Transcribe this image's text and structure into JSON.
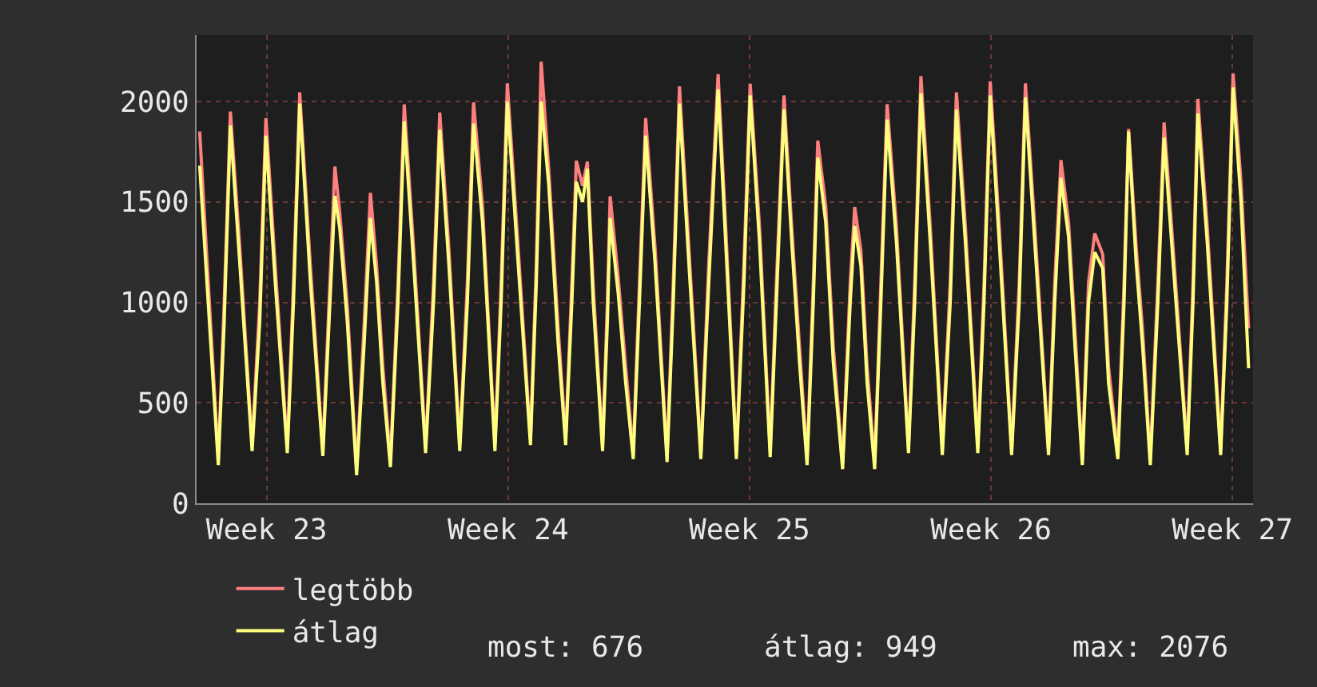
{
  "chart_data": {
    "type": "line",
    "x": [
      "--06-04T13:26",
      "--06-05T02:24",
      "--06-05T06:29",
      "--06-05T10:48",
      "--06-05T17:17",
      "--06-06T01:55",
      "--06-06T07:12",
      "--06-06T11:31",
      "--06-06T18:00",
      "--06-07T02:24",
      "--06-07T06:43",
      "--06-07T11:02",
      "--06-07T18:29",
      "--06-08T03:07",
      "--06-08T07:26",
      "--06-08T11:31",
      "--06-08T14:53",
      "--06-08T20:10",
      "--06-09T02:38",
      "--06-09T07:55",
      "--06-09T12:14",
      "--06-09T16:34",
      "--06-09T20:53",
      "--06-10T02:10",
      "--06-10T07:26",
      "--06-10T11:46",
      "--06-10T18:14",
      "--06-11T02:38",
      "--06-11T08:10",
      "--06-11T12:29",
      "--06-11T18:43",
      "--06-12T02:24",
      "--06-12T07:41",
      "--06-12T12:00",
      "--06-12T18:14",
      "--06-13T02:53",
      "--06-13T07:12",
      "--06-13T11:31",
      "--06-13T18:58",
      "--06-14T03:36",
      "--06-14T07:41",
      "--06-14T11:02",
      "--06-14T16:19",
      "--06-14T22:48",
      "--06-15T04:05",
      "--06-15T08:24",
      "--06-15T11:31",
      "--06-15T15:50",
      "--06-15T19:12",
      "--06-15T23:17",
      "--06-16T05:46",
      "--06-16T09:07",
      "--06-16T11:02",
      "--06-16T16:34",
      "--06-16T21:50",
      "--06-17T03:07",
      "--06-17T07:26",
      "--06-17T11:46",
      "--06-17T18:14",
      "--06-18T02:38",
      "--06-18T06:58",
      "--06-18T11:17",
      "--06-18T17:46",
      "--06-19T02:10",
      "--06-19T07:41",
      "--06-19T14:10",
      "--06-19T19:26",
      "--06-20T02:53",
      "--06-20T08:10",
      "--06-20T12:29",
      "--06-20T18:58",
      "--06-21T02:24",
      "--06-21T06:43",
      "--06-21T12:00",
      "--06-21T17:31",
      "--06-21T22:48",
      "--06-22T04:05",
      "--06-22T08:24",
      "--06-22T11:31",
      "--06-22T17:02",
      "--06-22T22:19",
      "--06-23T04:48",
      "--06-23T10:05",
      "--06-23T13:12",
      "--06-23T17:31",
      "--06-23T21:50",
      "--06-24T03:07",
      "--06-24T07:26",
      "--06-24T11:46",
      "--06-24T18:14",
      "--06-25T02:38",
      "--06-25T06:58",
      "--06-25T11:17",
      "--06-25T17:46",
      "--06-26T02:10",
      "--06-26T07:41",
      "--06-26T12:00",
      "--06-26T18:14",
      "--06-27T02:53",
      "--06-27T07:12",
      "--06-27T11:31",
      "--06-27T17:46",
      "--06-28T02:24",
      "--06-28T07:41",
      "--06-28T12:00",
      "--06-28T18:29",
      "--06-29T04:05",
      "--06-29T08:24",
      "--06-29T12:43",
      "--06-29T18:00",
      "--06-29T22:19",
      "--06-30T03:36",
      "--06-30T07:55",
      "--06-30T12:14",
      "--06-30T17:46",
      "--06-30T21:50",
      "--07-01T04:19",
      "--07-01T08:38",
      "--07-01T11:46",
      "--07-01T17:02",
      "--07-01T21:22",
      "--07-02T02:53",
      "--07-02T08:10",
      "--07-02T12:29",
      "--07-02T18:43",
      "--07-03T04:34",
      "--07-03T08:38",
      "--07-03T12:00",
      "--07-03T18:29",
      "--07-04T03:50",
      "--07-04T08:10",
      "--07-04T12:29",
      "--07-04T18:00",
      "--07-04T23:17"
    ],
    "series": [
      {
        "name": "legtöbb",
        "color": "#ff7f7f",
        "values": [
          1850,
          220,
          1000,
          1950,
          1280,
          290,
          1000,
          1917,
          1180,
          280,
          1100,
          2045,
          1180,
          265,
          1000,
          1676,
          1450,
          980,
          170,
          900,
          1545,
          1180,
          680,
          210,
          1100,
          1986,
          1280,
          280,
          1100,
          1945,
          1280,
          290,
          1100,
          1995,
          1480,
          290,
          1100,
          2090,
          1280,
          320,
          1200,
          2198,
          1660,
          880,
          320,
          1100,
          1705,
          1580,
          1700,
          1080,
          290,
          1000,
          1528,
          1130,
          680,
          250,
          1100,
          1917,
          1280,
          235,
          1100,
          2075,
          1280,
          250,
          1200,
          2136,
          1380,
          250,
          1200,
          2088,
          1380,
          260,
          1100,
          2030,
          1360,
          780,
          220,
          1100,
          1805,
          1480,
          780,
          200,
          1100,
          1475,
          1260,
          680,
          200,
          1100,
          1986,
          1380,
          280,
          1100,
          2126,
          1380,
          270,
          1100,
          2045,
          1380,
          280,
          1100,
          2100,
          1380,
          270,
          1100,
          2090,
          1380,
          270,
          1100,
          1708,
          1400,
          880,
          220,
          1100,
          1343,
          1240,
          680,
          250,
          1100,
          1863,
          1280,
          880,
          220,
          1100,
          1895,
          1280,
          270,
          1100,
          2012,
          1380,
          270,
          1100,
          2140,
          1600,
          870
        ]
      },
      {
        "name": "átlag",
        "color": "#ffff7f",
        "values": [
          1680,
          190,
          900,
          1880,
          1200,
          260,
          900,
          1830,
          1100,
          250,
          1000,
          1990,
          1100,
          235,
          900,
          1530,
          1370,
          900,
          140,
          800,
          1420,
          1100,
          600,
          180,
          1000,
          1900,
          1200,
          250,
          1000,
          1860,
          1200,
          260,
          1000,
          1890,
          1400,
          260,
          1000,
          2000,
          1200,
          290,
          1100,
          2000,
          1585,
          800,
          290,
          1000,
          1600,
          1500,
          1665,
          1000,
          260,
          900,
          1420,
          1050,
          600,
          220,
          1000,
          1830,
          1200,
          205,
          1000,
          1990,
          1200,
          220,
          1100,
          2060,
          1300,
          220,
          1100,
          2030,
          1300,
          230,
          1000,
          1960,
          1288,
          700,
          190,
          1000,
          1720,
          1400,
          700,
          170,
          1000,
          1380,
          1183,
          600,
          170,
          1000,
          1910,
          1300,
          250,
          1000,
          2040,
          1300,
          240,
          1000,
          1960,
          1300,
          250,
          1000,
          2030,
          1300,
          240,
          1000,
          2020,
          1300,
          240,
          1000,
          1620,
          1328,
          800,
          190,
          1000,
          1250,
          1170,
          600,
          220,
          1000,
          1850,
          1200,
          800,
          190,
          1000,
          1820,
          1200,
          240,
          1000,
          1940,
          1300,
          240,
          1000,
          2070,
          1500,
          672
        ]
      }
    ],
    "xlim": [
      "--06-04T11:17",
      "--07-05T02:24"
    ],
    "xticks": [
      {
        "value": "--06-06T12:00",
        "label": "Week 23"
      },
      {
        "value": "--06-13T12:00",
        "label": "Week 24"
      },
      {
        "value": "--06-20T12:00",
        "label": "Week 25"
      },
      {
        "value": "--06-27T12:00",
        "label": "Week 26"
      },
      {
        "value": "--07-04T12:00",
        "label": "Week 27"
      }
    ],
    "ylim": [
      0,
      2330
    ],
    "yticks": [
      0,
      500,
      1000,
      1500,
      2000
    ],
    "grid": true,
    "legend": "bottom left",
    "line_style": "solid",
    "marker": "none",
    "annotations": [
      "most: 676",
      "átlag: 949",
      "max: 2076"
    ]
  }
}
